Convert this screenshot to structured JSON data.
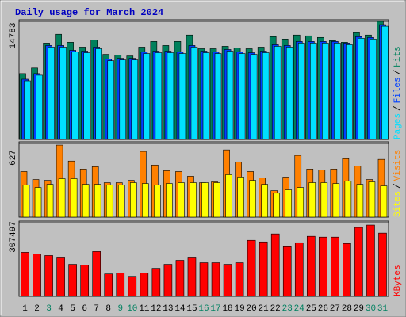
{
  "chart_data": [
    {
      "type": "bar",
      "title": "Daily usage for March 2024",
      "categories": [
        "1",
        "2",
        "3",
        "4",
        "5",
        "6",
        "7",
        "8",
        "9",
        "10",
        "11",
        "12",
        "13",
        "14",
        "15",
        "16",
        "17",
        "18",
        "19",
        "20",
        "21",
        "22",
        "23",
        "24",
        "25",
        "26",
        "27",
        "28",
        "29",
        "30",
        "31"
      ],
      "ylim": [
        0,
        14783
      ],
      "yticks": [
        14783
      ],
      "legend_separator": "/",
      "series": [
        {
          "name": "Hits",
          "color": "#00805c",
          "values": [
            8246,
            8950,
            12067,
            13173,
            12168,
            11564,
            12469,
            10659,
            10559,
            10458,
            11564,
            12268,
            11765,
            12268,
            13073,
            11363,
            11363,
            11665,
            11464,
            11363,
            11564,
            12872,
            12570,
            13073,
            12972,
            12771,
            12369,
            12168,
            13374,
            13073,
            14783
          ]
        },
        {
          "name": "Files",
          "color": "#0040ff",
          "values": [
            7542,
            8246,
            11766,
            11766,
            11162,
            11062,
            11564,
            10056,
            10157,
            10157,
            10961,
            11062,
            11062,
            10961,
            11766,
            11062,
            10961,
            11263,
            10961,
            10860,
            11062,
            11866,
            11766,
            12268,
            12268,
            12268,
            12268,
            12067,
            12872,
            12771,
            14380
          ]
        },
        {
          "name": "Pages",
          "color": "#00e0ff",
          "values": [
            7341,
            8045,
            11565,
            11565,
            10961,
            10861,
            11363,
            9855,
            9956,
            9956,
            10760,
            10861,
            10861,
            10760,
            11565,
            10861,
            10760,
            11062,
            10760,
            10659,
            10861,
            11665,
            11565,
            12067,
            12067,
            12067,
            12067,
            11866,
            12671,
            12570,
            14179
          ]
        }
      ]
    },
    {
      "type": "bar",
      "categories": [
        "1",
        "2",
        "3",
        "4",
        "5",
        "6",
        "7",
        "8",
        "9",
        "10",
        "11",
        "12",
        "13",
        "14",
        "15",
        "16",
        "17",
        "18",
        "19",
        "20",
        "21",
        "22",
        "23",
        "24",
        "25",
        "26",
        "27",
        "28",
        "29",
        "30",
        "31"
      ],
      "ylim": [
        0,
        627
      ],
      "yticks": [
        627
      ],
      "legend_separator": "/",
      "series": [
        {
          "name": "Visits",
          "color": "#ff8000",
          "values": [
            388,
            320,
            313,
            613,
            477,
            409,
            429,
            293,
            293,
            313,
            559,
            443,
            395,
            388,
            348,
            293,
            300,
            572,
            470,
            388,
            334,
            225,
            341,
            525,
            409,
            402,
            409,
            497,
            436,
            320,
            491
          ]
        },
        {
          "name": "Sites",
          "color": "#ffff00",
          "values": [
            273,
            252,
            279,
            327,
            327,
            279,
            279,
            273,
            273,
            293,
            286,
            273,
            286,
            293,
            293,
            293,
            293,
            361,
            341,
            313,
            279,
            204,
            232,
            252,
            293,
            293,
            286,
            307,
            279,
            300,
            266
          ]
        }
      ]
    },
    {
      "type": "bar",
      "categories": [
        "1",
        "2",
        "3",
        "4",
        "5",
        "6",
        "7",
        "8",
        "9",
        "10",
        "11",
        "12",
        "13",
        "14",
        "15",
        "16",
        "17",
        "18",
        "19",
        "20",
        "21",
        "22",
        "23",
        "24",
        "25",
        "26",
        "27",
        "28",
        "29",
        "30",
        "31"
      ],
      "category_colors": [
        "#000000",
        "#000000",
        "#008060",
        "#000000",
        "#000000",
        "#000000",
        "#000000",
        "#000000",
        "#008060",
        "#008060",
        "#000000",
        "#000000",
        "#000000",
        "#000000",
        "#000000",
        "#008060",
        "#008060",
        "#000000",
        "#000000",
        "#000000",
        "#000000",
        "#000000",
        "#008060",
        "#008060",
        "#000000",
        "#000000",
        "#000000",
        "#000000",
        "#000000",
        "#008060",
        "#008060"
      ],
      "ylim": [
        0,
        307497
      ],
      "yticks": [
        307497
      ],
      "series": [
        {
          "name": "KBytes",
          "color": "#ff0000",
          "values": [
            183832,
            177148,
            170462,
            163776,
            133696,
            130354,
            187174,
            93583,
            96926,
            83560,
            96926,
            116984,
            133696,
            150412,
            163776,
            140380,
            140380,
            133696,
            140380,
            233970,
            227288,
            260708,
            207232,
            223940,
            250686,
            247342,
            247342,
            220606,
            287452,
            297438,
            264050
          ]
        }
      ]
    }
  ]
}
